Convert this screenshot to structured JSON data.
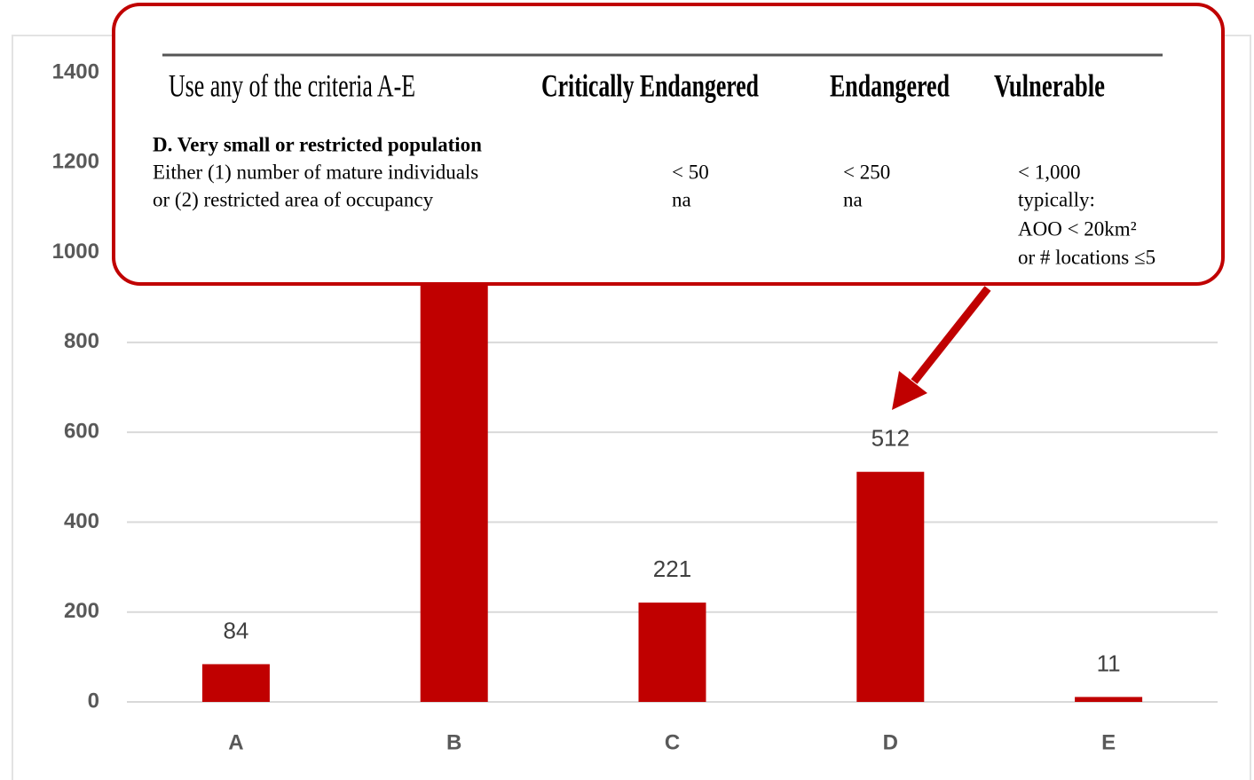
{
  "chart_data": {
    "type": "bar",
    "categories": [
      "A",
      "B",
      "C",
      "D",
      "E"
    ],
    "values": [
      84,
      1250,
      221,
      512,
      11
    ],
    "color": "#c00000",
    "ylim": [
      0,
      1400
    ],
    "yticks": [
      0,
      200,
      400,
      600,
      800,
      1000,
      1200,
      1400
    ],
    "grid": true
  },
  "callout": {
    "headers": [
      "Use any of the criteria A-E",
      "Critically Endangered",
      "Endangered",
      "Vulnerable"
    ],
    "section": "D. Very small or restricted population",
    "rows": [
      [
        "Either (1) number of mature individuals",
        "< 50",
        "< 250",
        "< 1,000"
      ],
      [
        "or (2) restricted area of occupancy",
        "na",
        "na",
        "typically:"
      ]
    ],
    "notes": [
      "AOO < 20km²",
      "or # locations ≤5"
    ]
  }
}
